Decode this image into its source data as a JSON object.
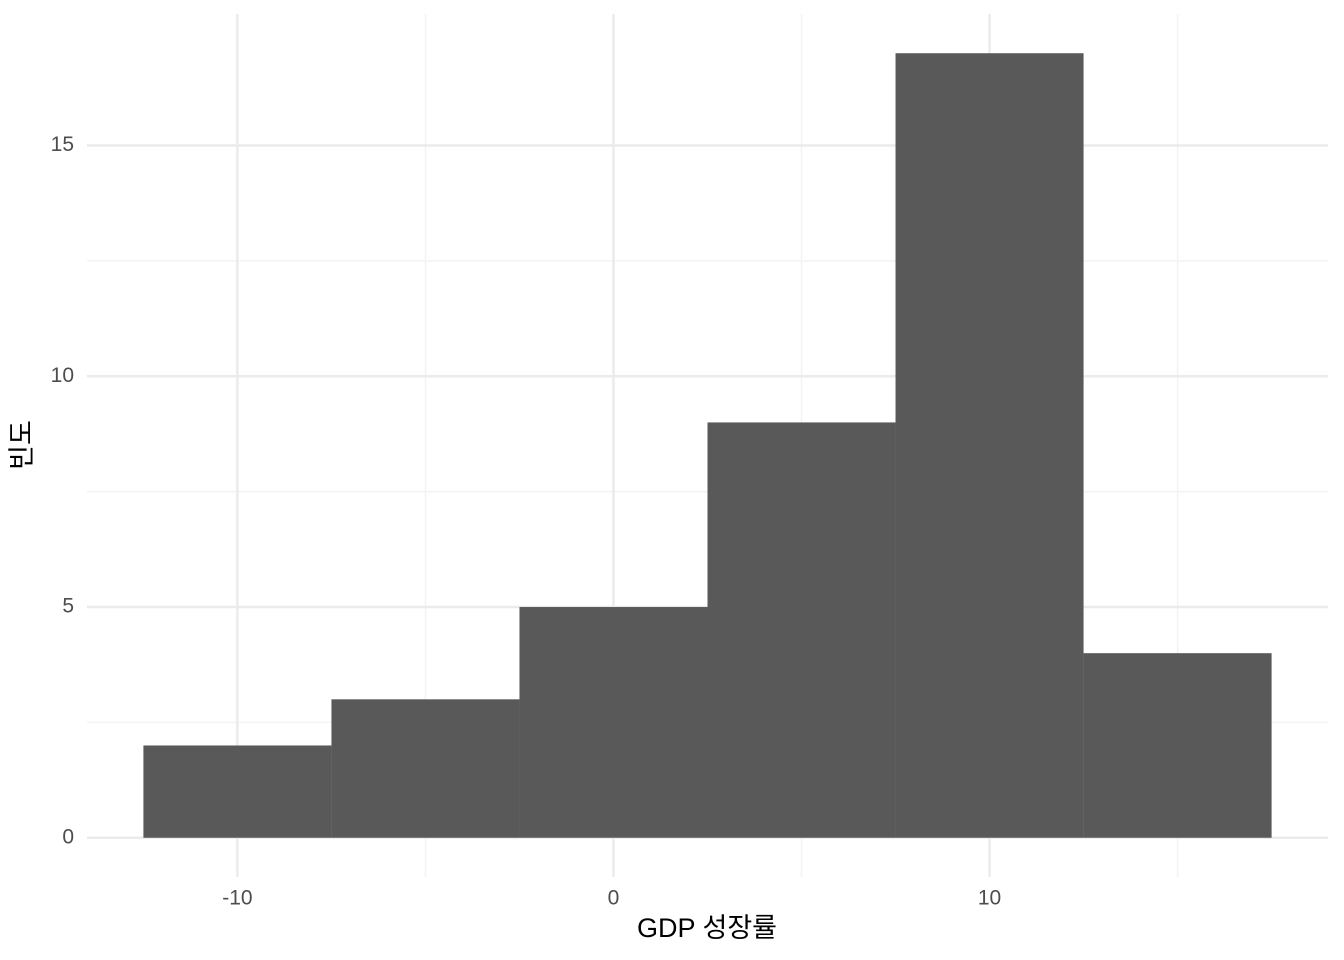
{
  "chart_data": {
    "type": "histogram",
    "xlabel": "GDP 성장률",
    "ylabel": "빈도",
    "bins": [
      -12.5,
      -7.5,
      -2.5,
      2.5,
      7.5,
      12.5,
      17.5
    ],
    "values": [
      2,
      3,
      5,
      9,
      17,
      4
    ],
    "color": "#595959",
    "xlim": [
      -14,
      19
    ],
    "ylim": [
      -0.85,
      17.85
    ],
    "xticks": [
      -10,
      0,
      10
    ],
    "yticks": [
      0,
      5,
      10,
      15
    ],
    "minor_xticks": [
      -5,
      5,
      15
    ],
    "minor_yticks": [
      2.5,
      7.5,
      12.5
    ],
    "grid": true
  }
}
